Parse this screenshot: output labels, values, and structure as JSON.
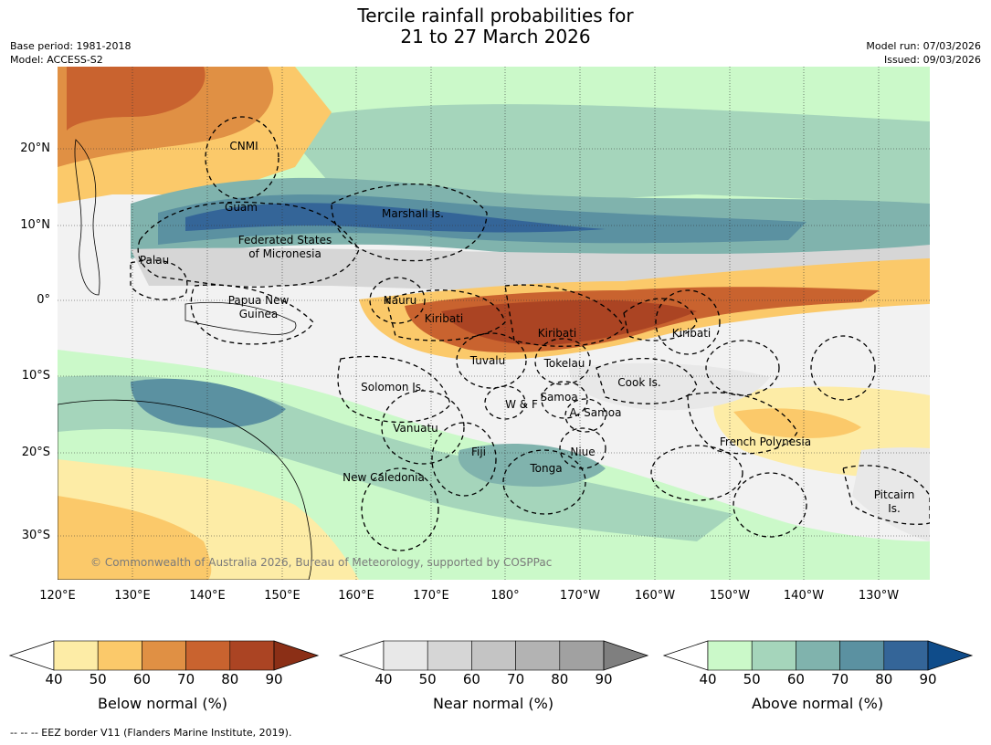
{
  "title_line1": "Tercile rainfall probabilities for",
  "title_line2": "21 to 27 March 2026",
  "meta_left": [
    "Base period: 1981-2018",
    "Model: ACCESS-S2"
  ],
  "meta_right": [
    "Model run: 07/03/2026",
    "Issued: 09/03/2026"
  ],
  "lat_labels": [
    "20°N",
    "10°N",
    "0°",
    "10°S",
    "20°S",
    "30°S"
  ],
  "lon_labels": [
    "120°E",
    "130°E",
    "140°E",
    "150°E",
    "160°E",
    "170°E",
    "180°",
    "170°W",
    "160°W",
    "150°W",
    "140°W",
    "130°W"
  ],
  "places": [
    "CNMI",
    "Guam",
    "Marshall Is.",
    "Federated States",
    "of Micronesia",
    "Palau",
    "Papua New",
    "Guinea",
    "Nauru",
    "Kiribati",
    "Kiribati",
    "Kiribati",
    "Tuvalu",
    "Tokelau",
    "Solomon Is.",
    "Cook Is.",
    "Samoa",
    "W & F",
    "A. Samoa",
    "Vanuatu",
    "Fiji",
    "Niue",
    "Tonga",
    "French Polynesia",
    "New Caledonia",
    "Pitcairn",
    "Is."
  ],
  "copyright": "© Commonwealth of Australia 2026, Bureau of Meteorology, supported by COSPPac",
  "colorbars": [
    {
      "label": "Below normal (%)",
      "ticks": [
        "40",
        "50",
        "60",
        "70",
        "80",
        "90"
      ],
      "colors": [
        "#ffffff",
        "#fdeca6",
        "#fbc96a",
        "#e09044",
        "#c9632f",
        "#ab4423",
        "#8b2f16"
      ]
    },
    {
      "label": "Near normal (%)",
      "ticks": [
        "40",
        "50",
        "60",
        "70",
        "80",
        "90"
      ],
      "colors": [
        "#ffffff",
        "#e8e8e8",
        "#d6d6d6",
        "#c4c4c4",
        "#b3b3b3",
        "#a1a1a1",
        "#7f7f7f"
      ]
    },
    {
      "label": "Above normal (%)",
      "ticks": [
        "40",
        "50",
        "60",
        "70",
        "80",
        "90"
      ],
      "colors": [
        "#ffffff",
        "#cbf9c9",
        "#a5d5bb",
        "#80b3ad",
        "#5b91a1",
        "#346598",
        "#0f4c8a"
      ]
    }
  ],
  "footer": "--  --  -- EEZ border V11 (Flanders Marine Institute, 2019)."
}
